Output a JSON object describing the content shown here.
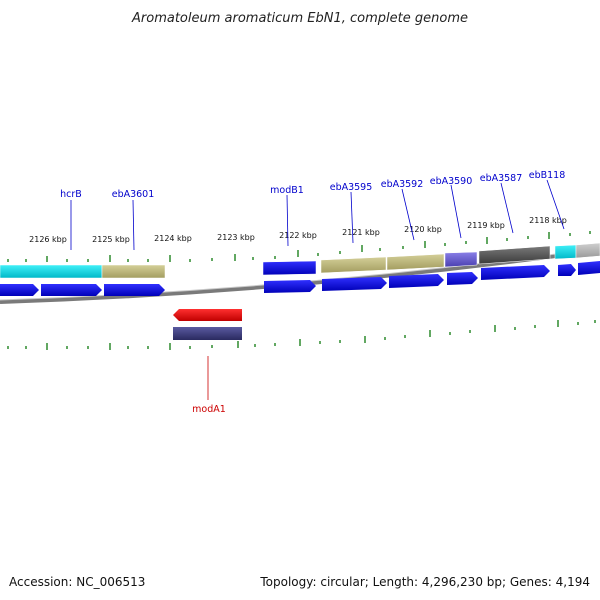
{
  "title": "Aromatoleum aromaticum EbN1, complete genome",
  "footer": {
    "accession": "Accession: NC_006513",
    "summary": "Topology: circular; Length: 4,296,230 bp; Genes: 4,194"
  },
  "kbp_labels": [
    "2126 kbp",
    "2125 kbp",
    "2124 kbp",
    "2123 kbp",
    "2122 kbp",
    "2121 kbp",
    "2120 kbp",
    "2119 kbp",
    "2118 kbp"
  ],
  "gene_labels": [
    {
      "name": "hcrB",
      "color": "#0000cc"
    },
    {
      "name": "ebA3601",
      "color": "#0000cc"
    },
    {
      "name": "modB1",
      "color": "#0000cc"
    },
    {
      "name": "ebA3595",
      "color": "#0000cc"
    },
    {
      "name": "ebA3592",
      "color": "#0000cc"
    },
    {
      "name": "ebA3590",
      "color": "#0000cc"
    },
    {
      "name": "ebA3587",
      "color": "#0000cc"
    },
    {
      "name": "ebB118",
      "color": "#0000cc"
    },
    {
      "name": "modA1",
      "color": "#cc0000"
    }
  ],
  "colors": {
    "forward_cds": "#0000ee",
    "reverse_cds": "#ee0000",
    "cyan_feature": "#00e0e8",
    "olive_feature": "#bdb77a",
    "purple_feature": "#6b5fd0",
    "dark_feature": "#555555",
    "navy_feature": "#3a3a7a",
    "tick": "#2e8b2e",
    "backbone": "#888888"
  }
}
